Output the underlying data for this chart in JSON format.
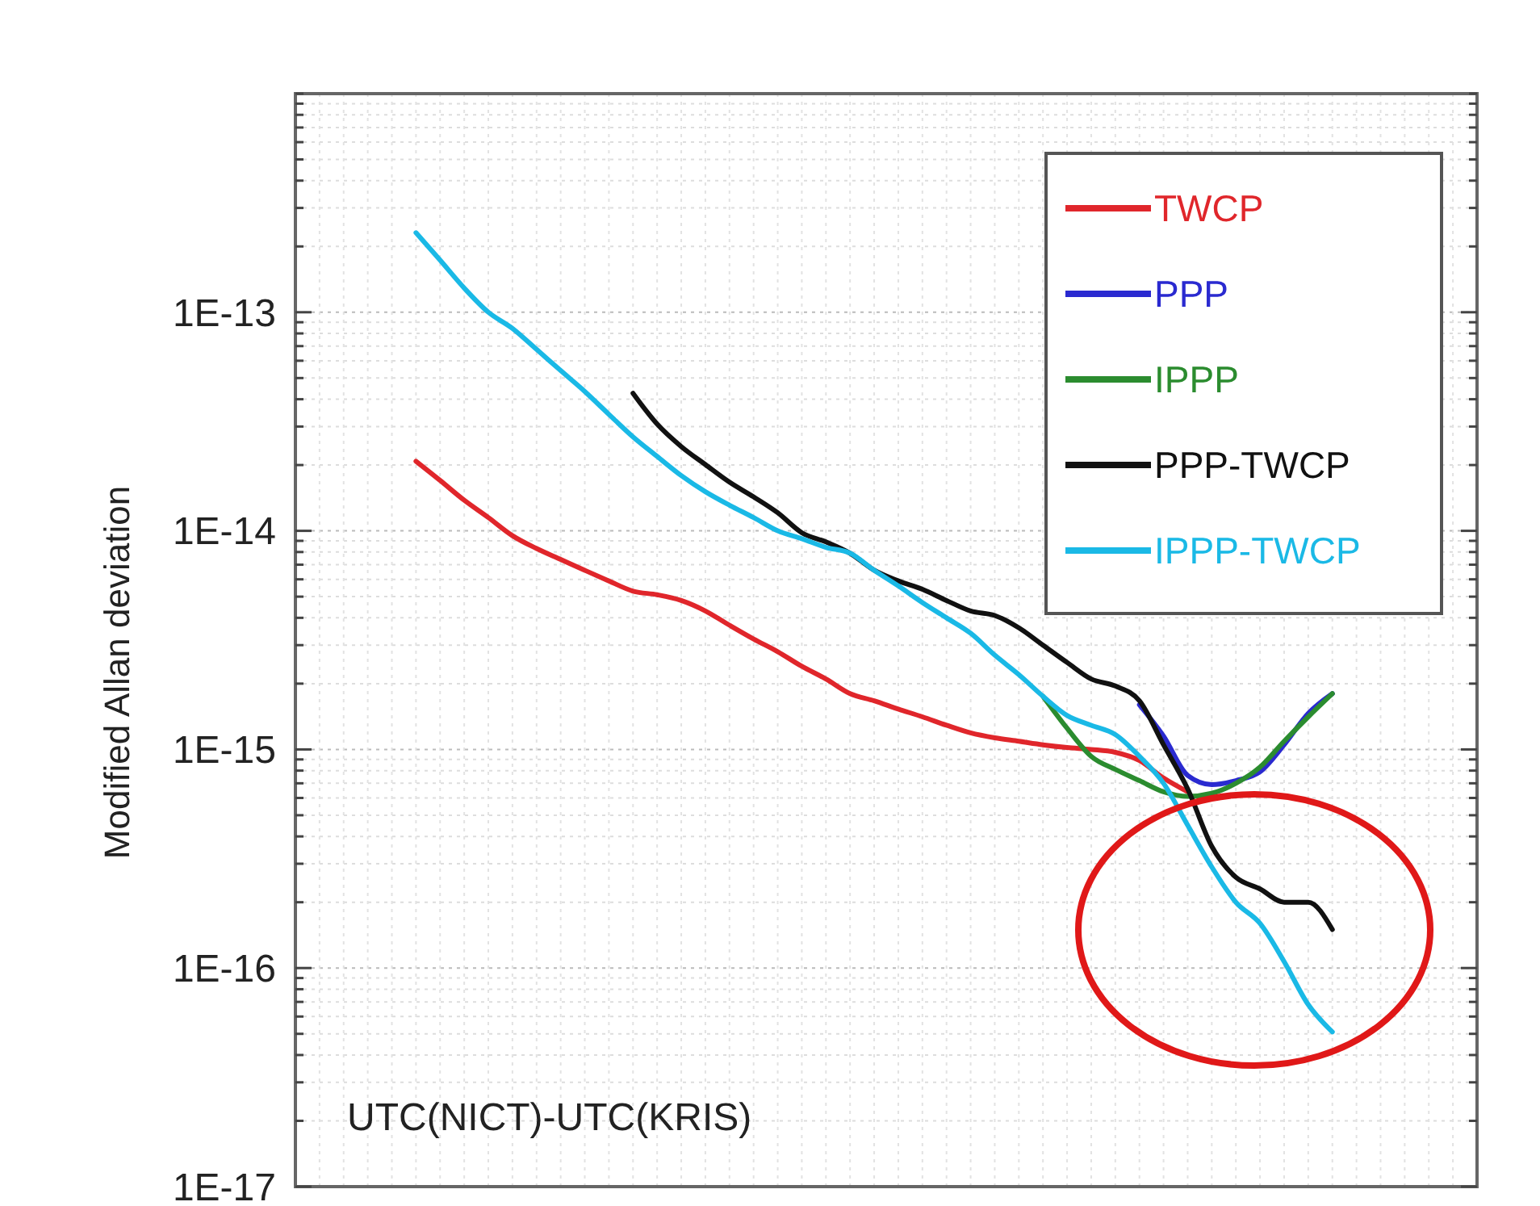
{
  "chart_data": {
    "type": "line",
    "ylabel": "Modified Allan deviation",
    "log": "y",
    "grid": true,
    "legend": "top right",
    "tick_labels": "y",
    "line_style": "solid",
    "marker": "none",
    "annotations": [
      "UTC(NICT)-UTC(KRIS)"
    ],
    "ylim": [
      1e-17,
      1e-12
    ],
    "yticks": [
      {
        "value": 1e-17,
        "label": "1E-17"
      },
      {
        "value": 2e-17,
        "label": null
      },
      {
        "value": 3e-17,
        "label": null
      },
      {
        "value": 4e-17,
        "label": null
      },
      {
        "value": 5e-17,
        "label": null
      },
      {
        "value": 6e-17,
        "label": null
      },
      {
        "value": 7e-17,
        "label": null
      },
      {
        "value": 8e-17,
        "label": null
      },
      {
        "value": 9e-17,
        "label": null
      },
      {
        "value": 1e-16,
        "label": "1E-16"
      },
      {
        "value": 2e-16,
        "label": null
      },
      {
        "value": 3e-16,
        "label": null
      },
      {
        "value": 4e-16,
        "label": null
      },
      {
        "value": 5e-16,
        "label": null
      },
      {
        "value": 6e-16,
        "label": null
      },
      {
        "value": 7e-16,
        "label": null
      },
      {
        "value": 8e-16,
        "label": null
      },
      {
        "value": 9e-16,
        "label": null
      },
      {
        "value": 1e-15,
        "label": "1E-15"
      },
      {
        "value": 2e-15,
        "label": null
      },
      {
        "value": 3e-15,
        "label": null
      },
      {
        "value": 4e-15,
        "label": null
      },
      {
        "value": 5e-15,
        "label": null
      },
      {
        "value": 6e-15,
        "label": null
      },
      {
        "value": 7e-15,
        "label": null
      },
      {
        "value": 8e-15,
        "label": null
      },
      {
        "value": 9e-15,
        "label": null
      },
      {
        "value": 1e-14,
        "label": "1E-14"
      },
      {
        "value": 2e-14,
        "label": null
      },
      {
        "value": 3e-14,
        "label": null
      },
      {
        "value": 4e-14,
        "label": null
      },
      {
        "value": 5e-14,
        "label": null
      },
      {
        "value": 6e-14,
        "label": null
      },
      {
        "value": 7e-14,
        "label": null
      },
      {
        "value": 8e-14,
        "label": null
      },
      {
        "value": 9e-14,
        "label": null
      },
      {
        "value": 1e-13,
        "label": "1E-13"
      },
      {
        "value": 2e-13,
        "label": null
      },
      {
        "value": 3e-13,
        "label": null
      },
      {
        "value": 4e-13,
        "label": null
      },
      {
        "value": 5e-13,
        "label": null
      },
      {
        "value": 6e-13,
        "label": null
      },
      {
        "value": 7e-13,
        "label": null
      },
      {
        "value": 8e-13,
        "label": null
      },
      {
        "value": 9e-13,
        "label": null
      },
      {
        "value": 1e-12,
        "label": null
      }
    ],
    "categories": [
      null,
      null,
      null,
      null,
      null,
      null,
      null,
      null,
      null,
      null,
      null,
      null,
      null,
      null,
      null,
      null,
      null,
      null,
      null,
      null,
      null,
      null,
      null,
      null,
      null,
      null,
      null,
      null,
      null,
      null,
      null,
      null,
      null,
      null,
      null,
      null,
      null,
      null,
      null,
      null,
      null,
      null,
      null,
      null,
      null,
      null,
      null,
      null,
      null,
      null
    ],
    "series": [
      {
        "name": "TWCP",
        "color": "#e0262b",
        "values": [
          null,
          null,
          null,
          null,
          null,
          2.08e-14,
          1.7e-14,
          1.38e-14,
          1.15e-14,
          9.5e-15,
          8.3e-15,
          7.4e-15,
          6.6e-15,
          5.9e-15,
          5.3e-15,
          5.1e-15,
          4.8e-15,
          4.3e-15,
          3.7e-15,
          3.2e-15,
          2.8e-15,
          2.4e-15,
          2.1e-15,
          1.8e-15,
          1.67e-15,
          1.53e-15,
          1.41e-15,
          1.29e-15,
          1.19e-15,
          1.13e-15,
          1.09e-15,
          1.05e-15,
          1.02e-15,
          1e-15,
          9.7e-16,
          8.9e-16,
          7.4e-16,
          6.4e-16,
          null,
          null,
          null,
          null,
          null,
          null,
          null,
          null,
          null,
          null,
          null,
          null
        ]
      },
      {
        "name": "PPP",
        "color": "#2a2ad0",
        "values": [
          null,
          null,
          null,
          null,
          null,
          null,
          null,
          null,
          null,
          null,
          null,
          null,
          null,
          null,
          null,
          null,
          null,
          null,
          null,
          null,
          null,
          null,
          null,
          null,
          null,
          null,
          null,
          null,
          null,
          null,
          null,
          null,
          null,
          null,
          null,
          1.6e-15,
          1.15e-15,
          7.6e-16,
          6.9e-16,
          7.2e-16,
          7.9e-16,
          1.05e-15,
          1.46e-15,
          1.8e-15,
          null,
          null,
          null,
          null,
          null,
          null
        ]
      },
      {
        "name": "IPPP",
        "color": "#2b8c2f",
        "values": [
          null,
          null,
          null,
          null,
          null,
          null,
          null,
          null,
          null,
          null,
          null,
          null,
          null,
          null,
          null,
          null,
          null,
          null,
          null,
          null,
          null,
          null,
          null,
          null,
          null,
          null,
          null,
          null,
          null,
          null,
          null,
          1.75e-15,
          1.25e-15,
          9.3e-16,
          8.1e-16,
          7.2e-16,
          6.4e-16,
          6.1e-16,
          6.3e-16,
          7e-16,
          8.3e-16,
          1.09e-15,
          1.41e-15,
          1.8e-15,
          null,
          null,
          null,
          null,
          null,
          null
        ]
      },
      {
        "name": "PPP-TWCP",
        "color": "#111111",
        "values": [
          null,
          null,
          null,
          null,
          null,
          null,
          null,
          null,
          null,
          null,
          null,
          null,
          null,
          null,
          4.26e-14,
          3.08e-14,
          2.43e-14,
          2.01e-14,
          1.67e-14,
          1.43e-14,
          1.21e-14,
          9.8e-15,
          8.9e-15,
          7.9e-15,
          6.6e-15,
          5.9e-15,
          5.4e-15,
          4.8e-15,
          4.3e-15,
          4.1e-15,
          3.6e-15,
          3e-15,
          2.5e-15,
          2.1e-15,
          1.95e-15,
          1.67e-15,
          1.05e-15,
          6.6e-16,
          3.6e-16,
          2.6e-16,
          2.3e-16,
          2e-16,
          2e-16,
          1.5e-16,
          null,
          null,
          null,
          null,
          null,
          null
        ]
      },
      {
        "name": "IPPP-TWCP",
        "color": "#1ab9e6",
        "values": [
          null,
          null,
          null,
          null,
          null,
          2.31e-13,
          1.73e-13,
          1.29e-13,
          1e-13,
          8.43e-14,
          6.76e-14,
          5.41e-14,
          4.34e-14,
          3.41e-14,
          2.69e-14,
          2.19e-14,
          1.79e-14,
          1.51e-14,
          1.31e-14,
          1.15e-14,
          1e-14,
          9.2e-15,
          8.4e-15,
          7.9e-15,
          6.6e-15,
          5.6e-15,
          4.7e-15,
          4e-15,
          3.4e-15,
          2.7e-15,
          2.2e-15,
          1.75e-15,
          1.43e-15,
          1.29e-15,
          1.17e-15,
          9.3e-16,
          7e-16,
          4.5e-16,
          2.9e-16,
          2e-16,
          1.6e-16,
          1.07e-16,
          6.8e-17,
          5.1e-17,
          null,
          null,
          null,
          null,
          null,
          null
        ]
      }
    ]
  }
}
